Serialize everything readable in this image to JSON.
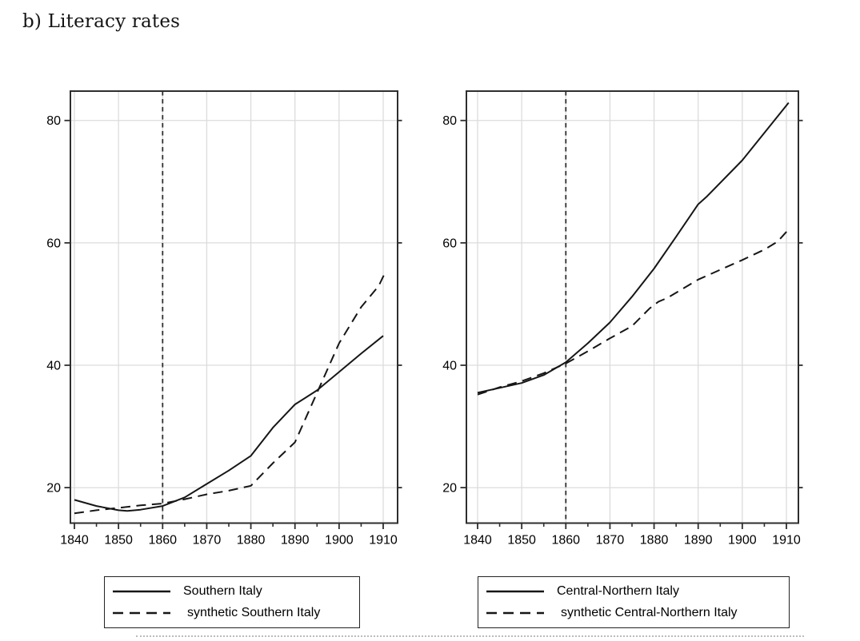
{
  "title": "b) Literacy rates",
  "colors": {
    "line": "#161616",
    "grid": "#dcdcdc",
    "border": "#2e2e2e",
    "vline": "#2f2f2f",
    "background": "#ffffff",
    "text": "#000000"
  },
  "chart_data": [
    {
      "type": "line",
      "panel": "Southern Italy vs synthetic control",
      "x_ticks": [
        1840,
        1850,
        1860,
        1870,
        1880,
        1890,
        1900,
        1910
      ],
      "x_minor_ticks": [
        1845,
        1855,
        1865,
        1875,
        1885,
        1895,
        1905
      ],
      "y_ticks": [
        20,
        40,
        60,
        80
      ],
      "ylim": [
        14.2,
        84.8
      ],
      "xlim": [
        1839.1,
        1913.3
      ],
      "grid": true,
      "treatment_vline_year": 1860,
      "legend_position": "below",
      "series": [
        {
          "name": "Southern Italy",
          "style": "solid",
          "points": [
            [
              1840,
              18.0
            ],
            [
              1845,
              17.0
            ],
            [
              1850,
              16.3
            ],
            [
              1852,
              16.2
            ],
            [
              1855,
              16.4
            ],
            [
              1860,
              17.0
            ],
            [
              1865,
              18.4
            ],
            [
              1870,
              20.6
            ],
            [
              1875,
              22.8
            ],
            [
              1880,
              25.2
            ],
            [
              1885,
              29.8
            ],
            [
              1890,
              33.6
            ],
            [
              1895,
              35.9
            ],
            [
              1900,
              38.9
            ],
            [
              1905,
              41.9
            ],
            [
              1910,
              44.8
            ]
          ]
        },
        {
          "name": "synthetic Southern Italy",
          "style": "dashed",
          "points": [
            [
              1840,
              15.8
            ],
            [
              1845,
              16.3
            ],
            [
              1850,
              16.7
            ],
            [
              1855,
              17.1
            ],
            [
              1860,
              17.4
            ],
            [
              1865,
              18.1
            ],
            [
              1870,
              18.9
            ],
            [
              1875,
              19.5
            ],
            [
              1880,
              20.3
            ],
            [
              1885,
              24.0
            ],
            [
              1890,
              27.4
            ],
            [
              1895,
              35.5
            ],
            [
              1900,
              43.6
            ],
            [
              1905,
              49.5
            ],
            [
              1909,
              53.0
            ],
            [
              1910.6,
              55.4
            ]
          ]
        }
      ]
    },
    {
      "type": "line",
      "panel": "Central-Northern Italy vs synthetic control",
      "x_ticks": [
        1840,
        1850,
        1860,
        1870,
        1880,
        1890,
        1900,
        1910
      ],
      "x_minor_ticks": [
        1845,
        1855,
        1865,
        1875,
        1885,
        1895,
        1905
      ],
      "y_ticks": [
        20,
        40,
        60,
        80
      ],
      "ylim": [
        14.2,
        84.8
      ],
      "xlim": [
        1837.5,
        1912.7
      ],
      "grid": true,
      "treatment_vline_year": 1860,
      "legend_position": "below",
      "series": [
        {
          "name": "Central-Northern Italy",
          "style": "solid",
          "points": [
            [
              1840,
              35.5
            ],
            [
              1845,
              36.3
            ],
            [
              1850,
              37.1
            ],
            [
              1855,
              38.4
            ],
            [
              1860,
              40.5
            ],
            [
              1865,
              43.6
            ],
            [
              1870,
              47.0
            ],
            [
              1875,
              51.2
            ],
            [
              1880,
              55.8
            ],
            [
              1885,
              61.0
            ],
            [
              1890,
              66.3
            ],
            [
              1892,
              67.6
            ],
            [
              1900,
              73.5
            ],
            [
              1910.5,
              82.9
            ]
          ]
        },
        {
          "name": "synthetic Central-Northern Italy",
          "style": "dashed",
          "points": [
            [
              1840,
              35.2
            ],
            [
              1845,
              36.4
            ],
            [
              1850,
              37.4
            ],
            [
              1855,
              38.7
            ],
            [
              1860,
              40.3
            ],
            [
              1865,
              42.3
            ],
            [
              1870,
              44.4
            ],
            [
              1875,
              46.4
            ],
            [
              1879,
              49.3
            ],
            [
              1881,
              50.4
            ],
            [
              1883,
              51.0
            ],
            [
              1890,
              54.0
            ],
            [
              1895,
              55.6
            ],
            [
              1900,
              57.2
            ],
            [
              1905,
              58.9
            ],
            [
              1908,
              60.2
            ],
            [
              1910.5,
              62.2
            ]
          ]
        }
      ]
    }
  ]
}
